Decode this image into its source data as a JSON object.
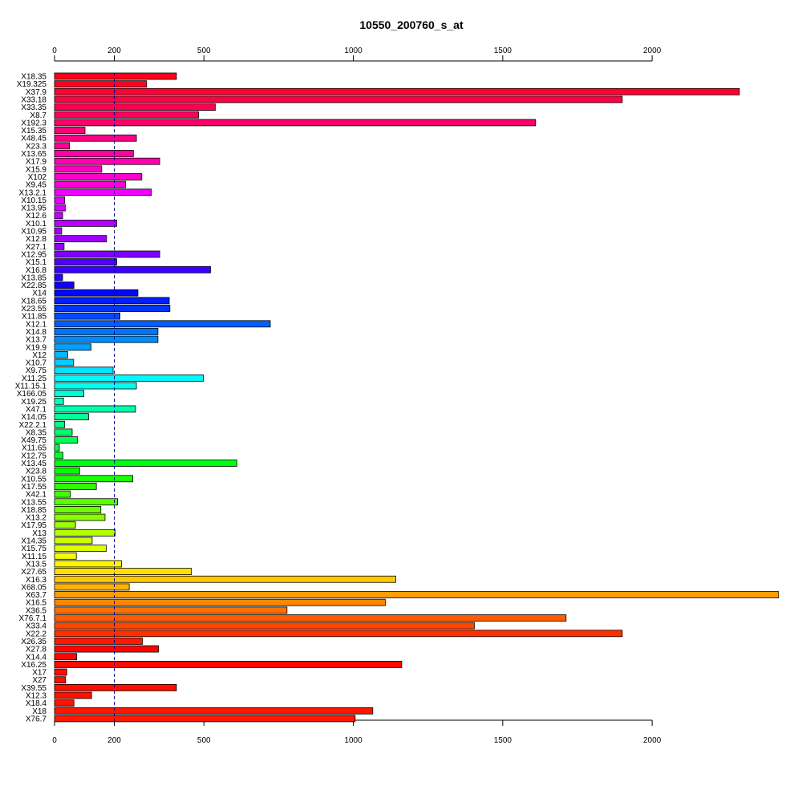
{
  "chart_data": {
    "type": "bar",
    "orientation": "horizontal",
    "title": "10550_200760_s_at",
    "xlabel": "",
    "ylabel": "",
    "xlim": [
      0,
      2420
    ],
    "xticks": [
      0,
      200,
      500,
      1000,
      1500,
      2000
    ],
    "tick_labels": [
      "0",
      "200",
      "500",
      "1000",
      "1500",
      "2000"
    ],
    "axes": [
      "top",
      "bottom"
    ],
    "reference_line": {
      "value": 200,
      "style": "dashed",
      "color": "#00008B"
    },
    "grid": false,
    "legend": "none",
    "categories": [
      "X18.35",
      "X19.325",
      "X37.9",
      "X33.18",
      "X33.35",
      "X8.7",
      "X192.3",
      "X15.35",
      "X48.45",
      "X23.3",
      "X13.65",
      "X17.9",
      "X15.9",
      "X102",
      "X9.45",
      "X13.2.1",
      "X10.15",
      "X13.95",
      "X12.6",
      "X10.1",
      "X10.95",
      "X12.8",
      "X27.1",
      "X12.95",
      "X15.1",
      "X16.8",
      "X13.85",
      "X22.85",
      "X14",
      "X18.65",
      "X23.55",
      "X11.85",
      "X12.1",
      "X14.8",
      "X13.7",
      "X19.9",
      "X12",
      "X10.7",
      "X9.75",
      "X11.25",
      "X11.15.1",
      "X166.05",
      "X19.25",
      "X47.1",
      "X14.05",
      "X22.2.1",
      "X8.35",
      "X49.75",
      "X11.65",
      "X12.75",
      "X13.45",
      "X23.8",
      "X10.55",
      "X17.55",
      "X42.1",
      "X13.55",
      "X18.85",
      "X13.2",
      "X17.95",
      "X13",
      "X14.35",
      "X15.75",
      "X11.15",
      "X13.5",
      "X27.65",
      "X16.3",
      "X68.05",
      "X63.7",
      "X16.5",
      "X36.5",
      "X76.7.1",
      "X33.4",
      "X22.2",
      "X26.35",
      "X27.8",
      "X14.4",
      "X16.25",
      "X17",
      "X27",
      "X39.55",
      "X12.3",
      "X18.4",
      "X18",
      "X76.7"
    ],
    "values": [
      408,
      308,
      2292,
      1900,
      538,
      482,
      1610,
      102,
      274,
      50,
      264,
      352,
      158,
      292,
      238,
      324,
      34,
      36,
      27,
      208,
      24,
      174,
      32,
      352,
      208,
      522,
      27,
      65,
      279,
      384,
      386,
      219,
      722,
      346,
      346,
      122,
      44,
      64,
      196,
      498,
      274,
      98,
      30,
      271,
      114,
      34,
      59,
      77,
      16,
      28,
      610,
      84,
      262,
      140,
      53,
      211,
      155,
      169,
      70,
      203,
      126,
      173,
      73,
      224,
      458,
      1142,
      250,
      2423,
      1107,
      778,
      1712,
      1405,
      1900,
      294,
      348,
      74,
      1162,
      41,
      37,
      408,
      124,
      65,
      1065,
      1006
    ],
    "colors": [
      "#FF0017",
      "#FF0025",
      "#FF0033",
      "#FF0041",
      "#FF004F",
      "#FF005D",
      "#FF006B",
      "#FF0079",
      "#FF0087",
      "#FF0095",
      "#FF00A3",
      "#FF00B1",
      "#FF00BF",
      "#FF00CD",
      "#FF00DB",
      "#F000FF",
      "#E200FF",
      "#D400FF",
      "#C600FF",
      "#B800FF",
      "#AA00FF",
      "#9C00FF",
      "#8E00FF",
      "#8000FF",
      "#5000FF",
      "#3A00FF",
      "#2400FF",
      "#0E00FF",
      "#0008FF",
      "#001EFF",
      "#0034FF",
      "#004AFF",
      "#0060FF",
      "#0076FF",
      "#008CFF",
      "#00A2FF",
      "#00B8FF",
      "#00CEFF",
      "#00E4FF",
      "#00FAFF",
      "#00FFEF",
      "#00FFD9",
      "#00FFC3",
      "#00FFAD",
      "#00FF97",
      "#00FF81",
      "#00FF6B",
      "#00FF55",
      "#00FF3F",
      "#00FF29",
      "#00FF13",
      "#02FF00",
      "#18FF00",
      "#2EFF00",
      "#44FF00",
      "#5AFF00",
      "#70FF00",
      "#86FF00",
      "#9CFF00",
      "#B2FF00",
      "#C8FF00",
      "#DEFF00",
      "#F4FF00",
      "#FFF500",
      "#FFDF00",
      "#FFC900",
      "#FFB300",
      "#FF9D00",
      "#FF8700",
      "#FF7100",
      "#FF5B00",
      "#FF4500",
      "#FF2F00",
      "#FF1900",
      "#FF0300",
      "#FF0700",
      "#FF0900",
      "#FF0B00",
      "#FF0D00",
      "#FF0F00",
      "#FF1100",
      "#FF1300",
      "#FF1500",
      "#FF1700"
    ]
  }
}
